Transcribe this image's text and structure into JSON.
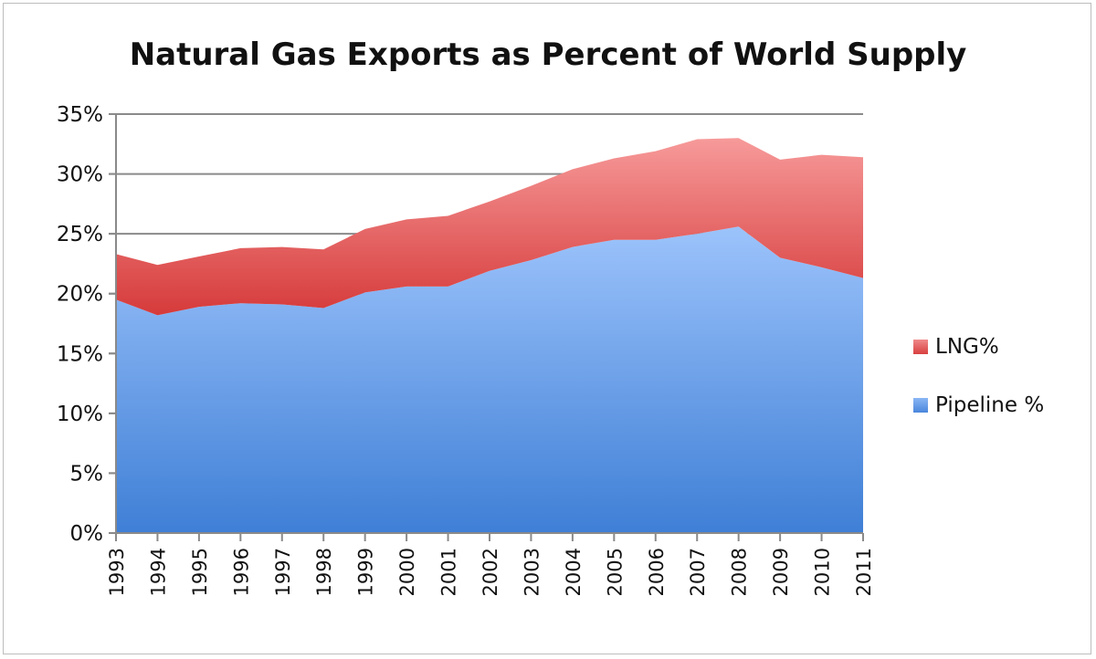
{
  "chart_data": {
    "type": "area",
    "stacked": true,
    "title": "Natural Gas Exports as Percent of World Supply",
    "xlabel": "",
    "ylabel": "",
    "ylim": [
      0,
      35
    ],
    "yticks": [
      "0%",
      "5%",
      "10%",
      "15%",
      "20%",
      "25%",
      "30%",
      "35%"
    ],
    "ytick_values": [
      0,
      5,
      10,
      15,
      20,
      25,
      30,
      35
    ],
    "grid": true,
    "legend_position": "right",
    "categories": [
      "1993",
      "1994",
      "1995",
      "1996",
      "1997",
      "1998",
      "1999",
      "2000",
      "2001",
      "2002",
      "2003",
      "2004",
      "2005",
      "2006",
      "2007",
      "2008",
      "2009",
      "2010",
      "2011"
    ],
    "series": [
      {
        "name": "Pipeline %",
        "color": "#5b93e6",
        "values": [
          19.5,
          18.2,
          18.9,
          19.2,
          19.1,
          18.8,
          20.1,
          20.6,
          20.6,
          21.9,
          22.8,
          23.9,
          24.5,
          24.5,
          25.0,
          25.6,
          23.0,
          22.2,
          21.3
        ]
      },
      {
        "name": "LNG%",
        "color": "#e05555",
        "values": [
          3.8,
          4.2,
          4.2,
          4.6,
          4.8,
          4.9,
          5.3,
          5.6,
          5.9,
          5.8,
          6.2,
          6.5,
          6.8,
          7.4,
          7.9,
          7.4,
          8.2,
          9.4,
          10.1
        ]
      }
    ],
    "legend": [
      "LNG%",
      "Pipeline %"
    ]
  }
}
